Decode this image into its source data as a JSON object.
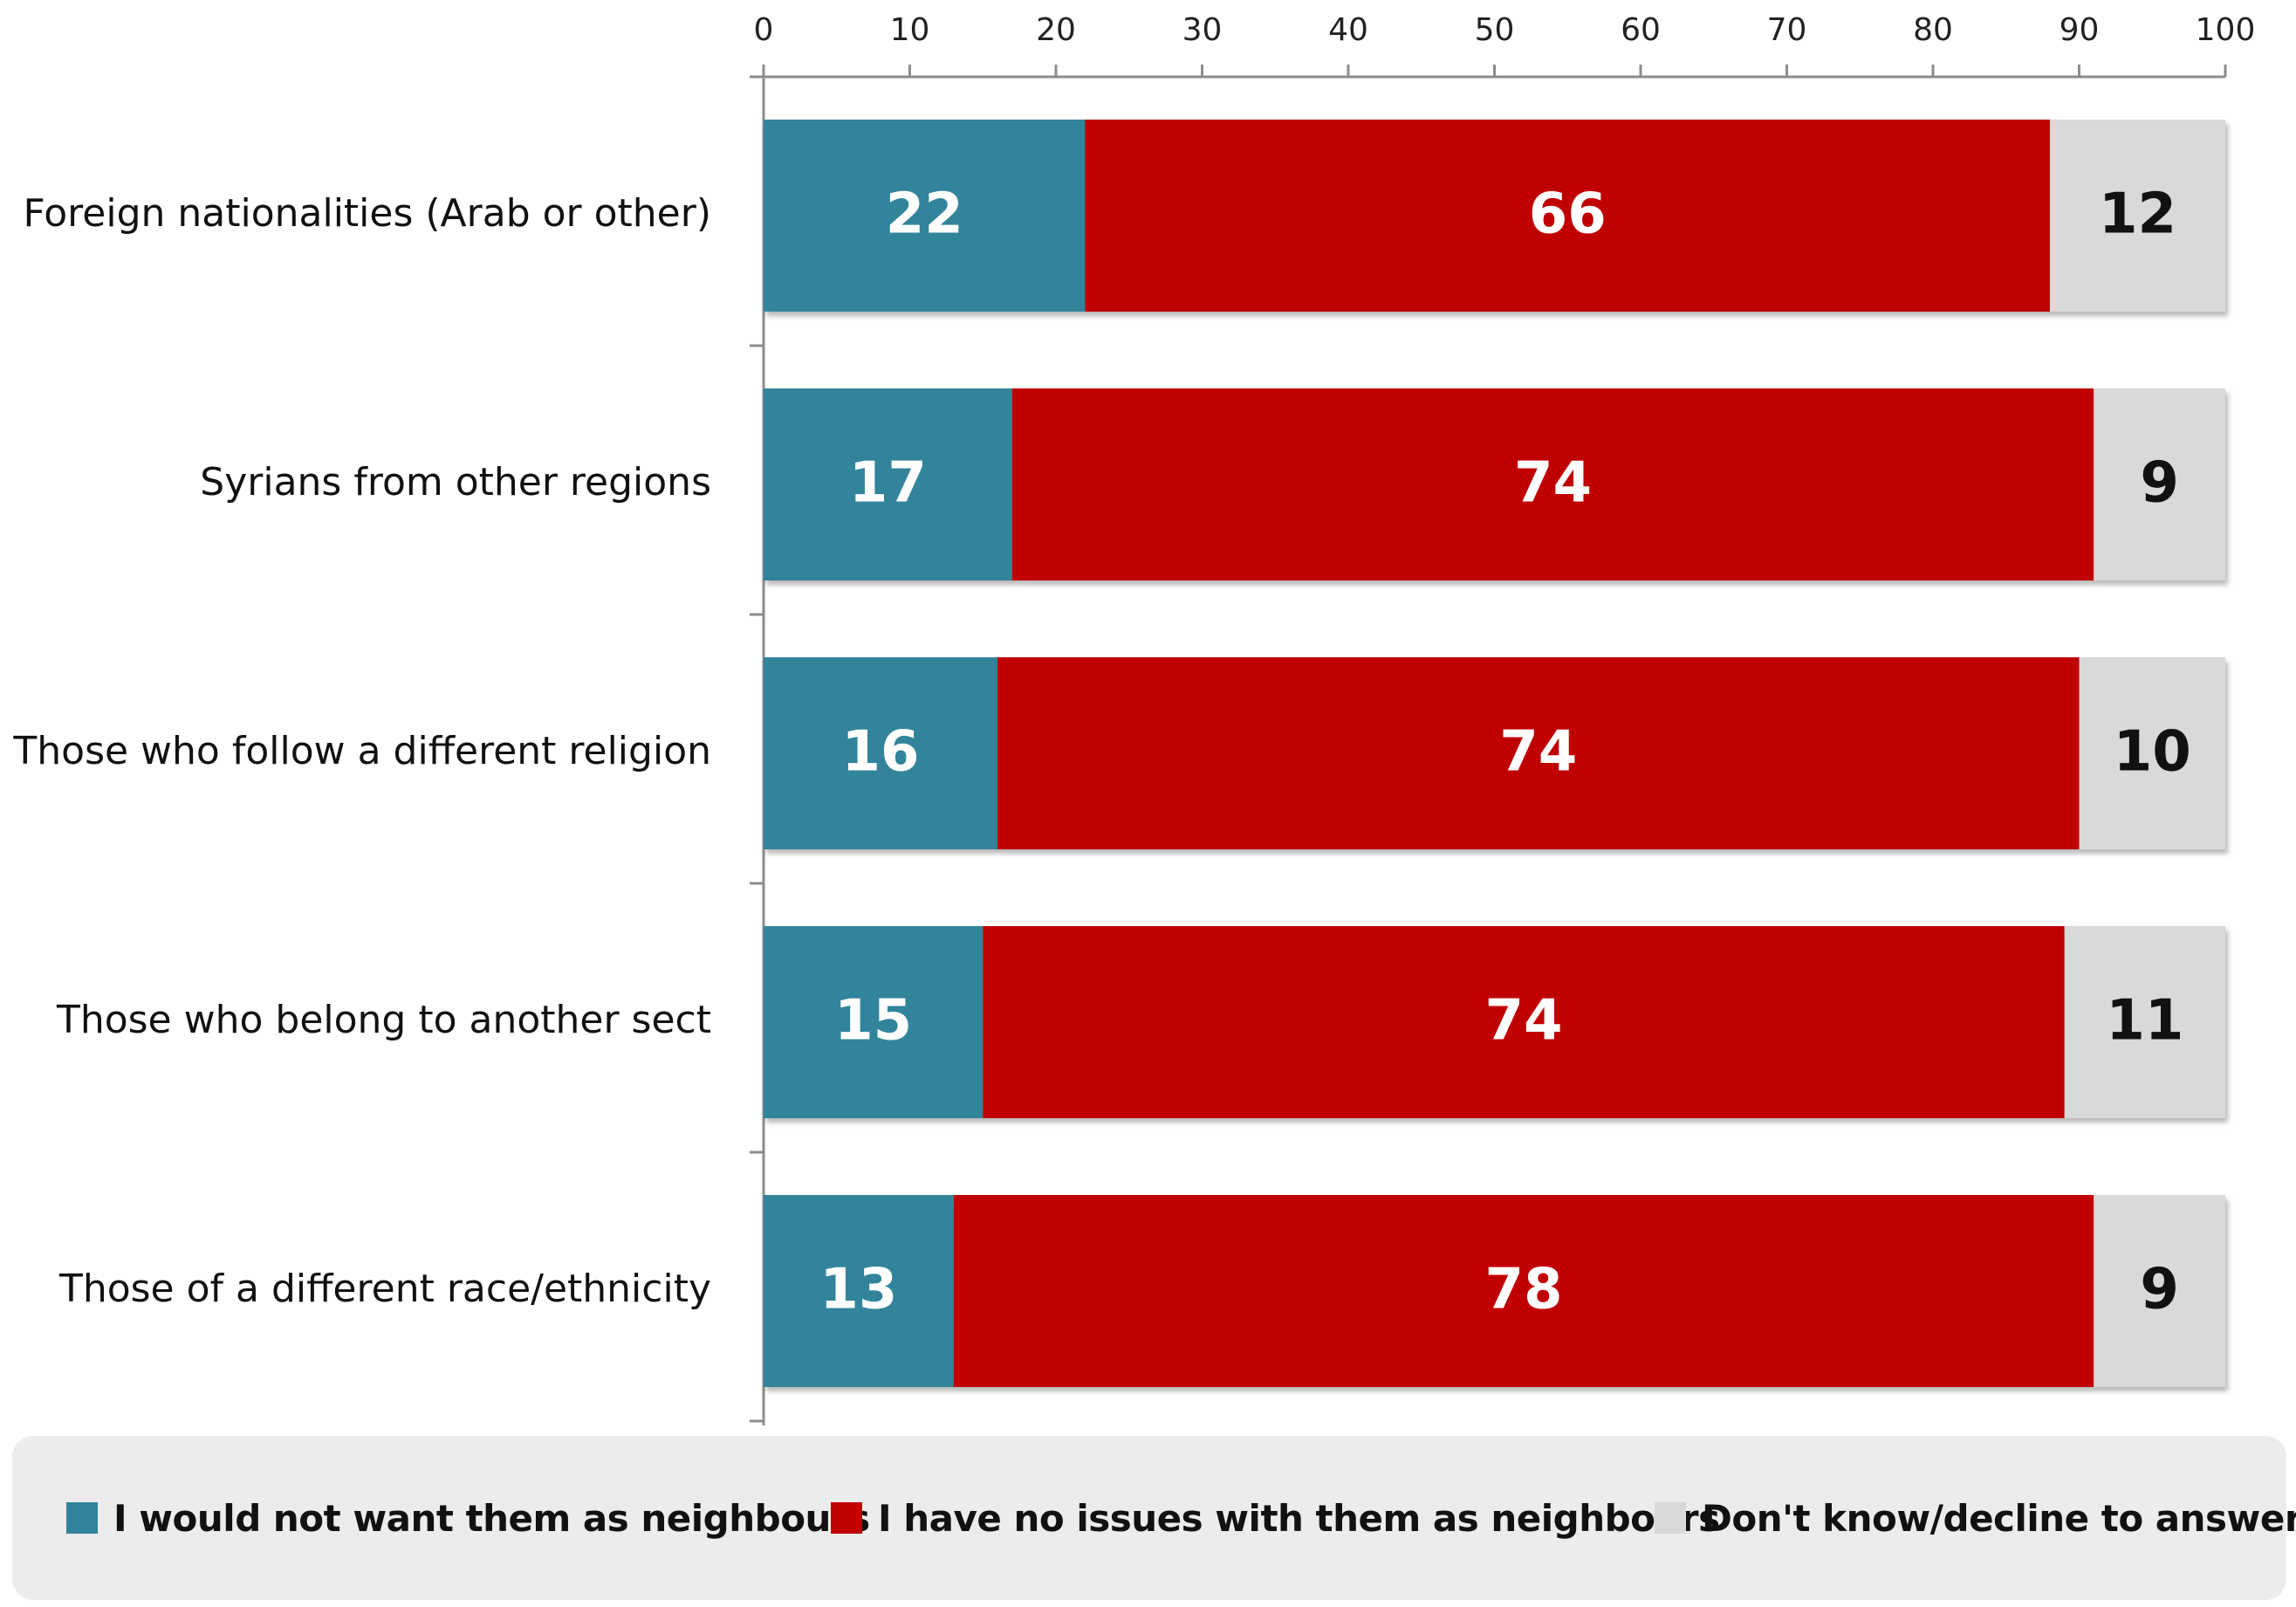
{
  "chart_data": {
    "type": "bar",
    "orientation": "horizontal",
    "stacked": true,
    "title": "",
    "xlabel": "",
    "ylabel": "",
    "xlim": [
      0,
      100
    ],
    "xticks": [
      0,
      10,
      20,
      30,
      40,
      50,
      60,
      70,
      80,
      90,
      100
    ],
    "x_axis_position": "top",
    "grid": false,
    "legend_position": "bottom",
    "categories": [
      "Foreign nationalities (Arab or other)",
      "Syrians from other regions",
      "Those who follow a different religion",
      "Those who belong to another sect",
      "Those of a different race/ethnicity"
    ],
    "series": [
      {
        "name": "I would not want them as neighbours",
        "color": "#31849b",
        "label_color": "#ffffff",
        "values": [
          22,
          17,
          16,
          15,
          13
        ]
      },
      {
        "name": "I have no issues with them as neighbours",
        "color": "#c00000",
        "label_color": "#ffffff",
        "values": [
          66,
          74,
          74,
          74,
          78
        ]
      },
      {
        "name": "Don't know/decline to answer",
        "color": "#d9d9d9",
        "label_color": "#111111",
        "values": [
          12,
          9,
          10,
          11,
          9
        ]
      }
    ]
  }
}
